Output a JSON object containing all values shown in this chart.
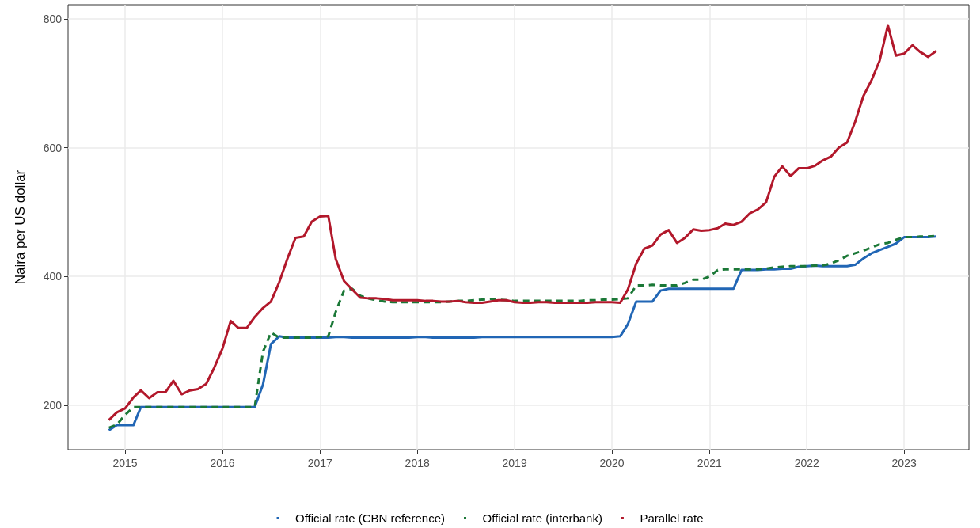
{
  "chart_data": {
    "type": "line",
    "ylabel": "Naira per US dollar",
    "x": [
      "2014-11",
      "2014-12",
      "2015-01",
      "2015-02",
      "2015-03",
      "2015-04",
      "2015-05",
      "2015-06",
      "2015-07",
      "2015-08",
      "2015-09",
      "2015-10",
      "2015-11",
      "2015-12",
      "2016-01",
      "2016-02",
      "2016-03",
      "2016-04",
      "2016-05",
      "2016-06",
      "2016-07",
      "2016-08",
      "2016-09",
      "2016-10",
      "2016-11",
      "2016-12",
      "2017-01",
      "2017-02",
      "2017-03",
      "2017-04",
      "2017-05",
      "2017-06",
      "2017-07",
      "2017-08",
      "2017-09",
      "2017-10",
      "2017-11",
      "2017-12",
      "2018-01",
      "2018-02",
      "2018-03",
      "2018-04",
      "2018-05",
      "2018-06",
      "2018-07",
      "2018-08",
      "2018-09",
      "2018-10",
      "2018-11",
      "2018-12",
      "2019-01",
      "2019-02",
      "2019-03",
      "2019-04",
      "2019-05",
      "2019-06",
      "2019-07",
      "2019-08",
      "2019-09",
      "2019-10",
      "2019-11",
      "2019-12",
      "2020-01",
      "2020-02",
      "2020-03",
      "2020-04",
      "2020-05",
      "2020-06",
      "2020-07",
      "2020-08",
      "2020-09",
      "2020-10",
      "2020-11",
      "2020-12",
      "2021-01",
      "2021-02",
      "2021-03",
      "2021-04",
      "2021-05",
      "2021-06",
      "2021-07",
      "2021-08",
      "2021-09",
      "2021-10",
      "2021-11",
      "2021-12",
      "2022-01",
      "2022-02",
      "2022-03",
      "2022-04",
      "2022-05",
      "2022-06",
      "2022-07",
      "2022-08",
      "2022-09",
      "2022-10",
      "2022-11",
      "2022-12",
      "2023-01",
      "2023-02",
      "2023-03",
      "2023-04",
      "2023-05"
    ],
    "series": [
      {
        "name": "Official rate (CBN reference)",
        "color": "#2166b5",
        "line_style": "solid",
        "values": [
          161,
          169,
          169,
          169,
          197,
          197,
          197,
          197,
          197,
          197,
          197,
          197,
          197,
          197,
          197,
          197,
          197,
          197,
          197,
          232,
          295,
          307,
          305,
          305,
          305,
          305,
          305,
          305,
          306,
          306,
          305,
          305,
          305,
          305,
          305,
          305,
          305,
          305,
          306,
          306,
          305,
          305,
          305,
          305,
          305,
          305,
          306,
          306,
          306,
          306,
          306,
          306,
          306,
          306,
          306,
          306,
          306,
          306,
          306,
          306,
          306,
          306,
          306,
          307,
          326,
          361,
          361,
          361,
          378,
          381,
          381,
          381,
          381,
          381,
          381,
          381,
          381,
          381,
          410,
          410,
          410,
          411,
          411,
          412,
          412,
          415,
          416,
          417,
          416,
          416,
          416,
          416,
          418,
          428,
          436,
          441,
          446,
          451,
          461,
          461,
          461,
          461,
          462
        ]
      },
      {
        "name": "Official rate (interbank)",
        "color": "#1b7837",
        "line_style": "dashed",
        "values": [
          165,
          170,
          185,
          197,
          197,
          197,
          197,
          197,
          197,
          197,
          197,
          197,
          197,
          197,
          197,
          197,
          197,
          197,
          197,
          283,
          313,
          305,
          305,
          305,
          305,
          305,
          306,
          307,
          345,
          378,
          381,
          370,
          366,
          363,
          361,
          360,
          360,
          360,
          360,
          360,
          360,
          360,
          361,
          362,
          362,
          363,
          364,
          365,
          364,
          363,
          362,
          362,
          362,
          362,
          362,
          362,
          362,
          362,
          362,
          363,
          363,
          364,
          364,
          365,
          366,
          386,
          386,
          387,
          386,
          386,
          386,
          390,
          395,
          395,
          400,
          410,
          411,
          411,
          411,
          411,
          411,
          412,
          414,
          415,
          416,
          416,
          416,
          417,
          417,
          420,
          425,
          432,
          436,
          440,
          445,
          450,
          452,
          457,
          461,
          461,
          462,
          462,
          463
        ]
      },
      {
        "name": "Parallel rate",
        "color": "#b2182b",
        "line_style": "solid",
        "values": [
          177,
          189,
          195,
          212,
          223,
          211,
          220,
          220,
          238,
          217,
          223,
          225,
          233,
          258,
          288,
          331,
          320,
          320,
          337,
          351,
          361,
          391,
          428,
          460,
          462,
          485,
          493,
          494,
          427,
          393,
          380,
          367,
          366,
          366,
          365,
          363,
          363,
          363,
          363,
          362,
          362,
          361,
          361,
          362,
          360,
          359,
          359,
          361,
          363,
          363,
          360,
          359,
          359,
          360,
          360,
          359,
          359,
          359,
          359,
          359,
          360,
          360,
          360,
          359,
          380,
          420,
          443,
          448,
          465,
          472,
          452,
          460,
          473,
          471,
          472,
          475,
          482,
          480,
          485,
          498,
          504,
          515,
          555,
          571,
          556,
          568,
          568,
          572,
          580,
          586,
          600,
          608,
          640,
          680,
          705,
          735,
          790,
          743,
          746,
          759,
          749,
          741,
          750
        ]
      }
    ],
    "xlim": [
      "2014-06",
      "2023-09"
    ],
    "xticks": [
      "2015",
      "2016",
      "2017",
      "2018",
      "2019",
      "2020",
      "2021",
      "2022",
      "2023"
    ],
    "ylim": [
      131,
      822
    ],
    "yticks": [
      200,
      400,
      600,
      800
    ],
    "grid": true,
    "legend": "bottom",
    "marker": "none"
  }
}
